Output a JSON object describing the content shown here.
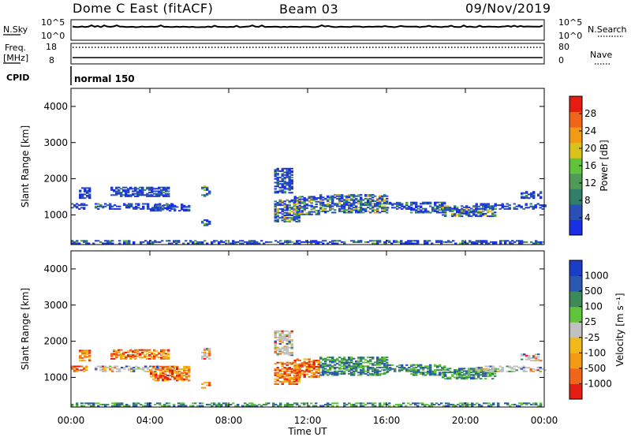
{
  "header": {
    "title": "Dome C East (fitACF)",
    "beam": "Beam 03",
    "date": "09/Nov/2019"
  },
  "status_panel": {
    "nsky_label": "N.Sky",
    "nsearch_label": "N.Search",
    "nsky_ticks": [
      "10^5",
      "10^0"
    ],
    "nsearch_ticks": [
      "10^5",
      "10^0"
    ],
    "freq_label_top": "Freq.",
    "freq_label_unit": "[MHz]",
    "freq_ticks": [
      "18",
      "8"
    ],
    "nave_label": "Nave",
    "nave_ticks": [
      "80",
      "0"
    ],
    "cpid_label": "CPID",
    "cpid_value": "normal 150"
  },
  "colors": {
    "power_scale": [
      "#1a2ee6",
      "#2a50b8",
      "#2f7f6a",
      "#4e9a56",
      "#5fc43a",
      "#d9c21a",
      "#f29a12",
      "#f0651a",
      "#e41c12"
    ],
    "velocity_scale": [
      "#e41c12",
      "#f0651a",
      "#f29a12",
      "#f2b81a",
      "#c0c0c0",
      "#5fc43a",
      "#3c8a57",
      "#2a57b0",
      "#1a3ec8"
    ]
  },
  "chart_data": [
    {
      "type": "heatmap",
      "name": "power",
      "ylabel": "Slant Range [km]",
      "ylim": [
        180,
        4500
      ],
      "yticks": [
        "1000",
        "2000",
        "3000",
        "4000"
      ],
      "xlim": [
        0,
        24
      ],
      "colorbar": {
        "label": "Power [dB]",
        "range": [
          0,
          32
        ],
        "ticks": [
          "4",
          "8",
          "12",
          "16",
          "20",
          "24",
          "28"
        ]
      },
      "scatter_bands": [
        {
          "t0": 0.0,
          "t1": 0.8,
          "r0": 1150,
          "r1": 1300,
          "level": 0.12
        },
        {
          "t0": 0.4,
          "t1": 0.9,
          "r0": 1450,
          "r1": 1750,
          "level": 0.1
        },
        {
          "t0": 1.2,
          "t1": 5.2,
          "r0": 1150,
          "r1": 1300,
          "level": 0.12
        },
        {
          "t0": 2.0,
          "t1": 5.0,
          "r0": 1500,
          "r1": 1750,
          "level": 0.1
        },
        {
          "t0": 4.0,
          "t1": 6.0,
          "r0": 1100,
          "r1": 1300,
          "level": 0.15
        },
        {
          "t0": 6.6,
          "t1": 7.0,
          "r0": 1500,
          "r1": 1800,
          "level": 0.35
        },
        {
          "t0": 6.6,
          "t1": 7.0,
          "r0": 700,
          "r1": 850,
          "level": 0.3
        },
        {
          "t0": 10.3,
          "t1": 11.6,
          "r0": 800,
          "r1": 1400,
          "level": 0.45
        },
        {
          "t0": 11.3,
          "t1": 12.6,
          "r0": 1000,
          "r1": 1500,
          "level": 0.45
        },
        {
          "t0": 12.6,
          "t1": 16.0,
          "r0": 1050,
          "r1": 1550,
          "level": 0.45
        },
        {
          "t0": 16.0,
          "t1": 17.2,
          "r0": 1150,
          "r1": 1350,
          "level": 0.25
        },
        {
          "t0": 17.2,
          "t1": 19.0,
          "r0": 1050,
          "r1": 1350,
          "level": 0.25
        },
        {
          "t0": 18.8,
          "t1": 21.5,
          "r0": 950,
          "r1": 1250,
          "level": 0.45
        },
        {
          "t0": 20.5,
          "t1": 24.0,
          "r0": 1150,
          "r1": 1300,
          "level": 0.12
        },
        {
          "t0": 22.8,
          "t1": 23.8,
          "r0": 1450,
          "r1": 1650,
          "level": 0.1
        },
        {
          "t0": 10.3,
          "t1": 11.2,
          "r0": 1600,
          "r1": 2300,
          "level": 0.15
        },
        {
          "t0": 0.0,
          "t1": 24.0,
          "r0": 200,
          "r1": 300,
          "level": 0.25
        }
      ]
    },
    {
      "type": "heatmap",
      "name": "velocity",
      "ylabel": "Slant Range [km]",
      "ylim": [
        180,
        4500
      ],
      "yticks": [
        "1000",
        "2000",
        "3000",
        "4000"
      ],
      "xlim": [
        0,
        24
      ],
      "xticks": [
        "00:00",
        "04:00",
        "08:00",
        "12:00",
        "16:00",
        "20:00",
        "00:00"
      ],
      "xlabel": "Time UT",
      "colorbar": {
        "label": "Velocity [m s⁻¹]",
        "tick_labels": [
          "-1000",
          "-500",
          "-100",
          "-25",
          "25",
          "100",
          "500",
          "1000"
        ]
      },
      "scatter_bands": [
        {
          "t0": 0.0,
          "t1": 0.8,
          "r0": 1150,
          "r1": 1300,
          "mode": "neg"
        },
        {
          "t0": 0.4,
          "t1": 0.9,
          "r0": 1450,
          "r1": 1750,
          "mode": "neg"
        },
        {
          "t0": 1.2,
          "t1": 5.2,
          "r0": 1150,
          "r1": 1300,
          "mode": "grey"
        },
        {
          "t0": 2.0,
          "t1": 5.0,
          "r0": 1500,
          "r1": 1750,
          "mode": "neg"
        },
        {
          "t0": 4.0,
          "t1": 6.0,
          "r0": 900,
          "r1": 1300,
          "mode": "neg"
        },
        {
          "t0": 6.6,
          "t1": 7.0,
          "r0": 1500,
          "r1": 1800,
          "mode": "grey"
        },
        {
          "t0": 6.6,
          "t1": 7.0,
          "r0": 700,
          "r1": 850,
          "mode": "neg"
        },
        {
          "t0": 10.3,
          "t1": 11.6,
          "r0": 800,
          "r1": 1400,
          "mode": "neg"
        },
        {
          "t0": 11.3,
          "t1": 12.6,
          "r0": 1000,
          "r1": 1500,
          "mode": "neg"
        },
        {
          "t0": 12.6,
          "t1": 16.0,
          "r0": 1050,
          "r1": 1550,
          "mode": "pos"
        },
        {
          "t0": 16.0,
          "t1": 17.2,
          "r0": 1150,
          "r1": 1350,
          "mode": "pos"
        },
        {
          "t0": 17.2,
          "t1": 19.0,
          "r0": 1050,
          "r1": 1350,
          "mode": "pos"
        },
        {
          "t0": 18.8,
          "t1": 21.5,
          "r0": 950,
          "r1": 1250,
          "mode": "pos"
        },
        {
          "t0": 20.5,
          "t1": 24.0,
          "r0": 1150,
          "r1": 1300,
          "mode": "grey"
        },
        {
          "t0": 22.8,
          "t1": 23.8,
          "r0": 1450,
          "r1": 1650,
          "mode": "grey"
        },
        {
          "t0": 10.3,
          "t1": 11.2,
          "r0": 1600,
          "r1": 2300,
          "mode": "grey"
        },
        {
          "t0": 0.0,
          "t1": 24.0,
          "r0": 200,
          "r1": 300,
          "mode": "pos"
        }
      ]
    }
  ]
}
